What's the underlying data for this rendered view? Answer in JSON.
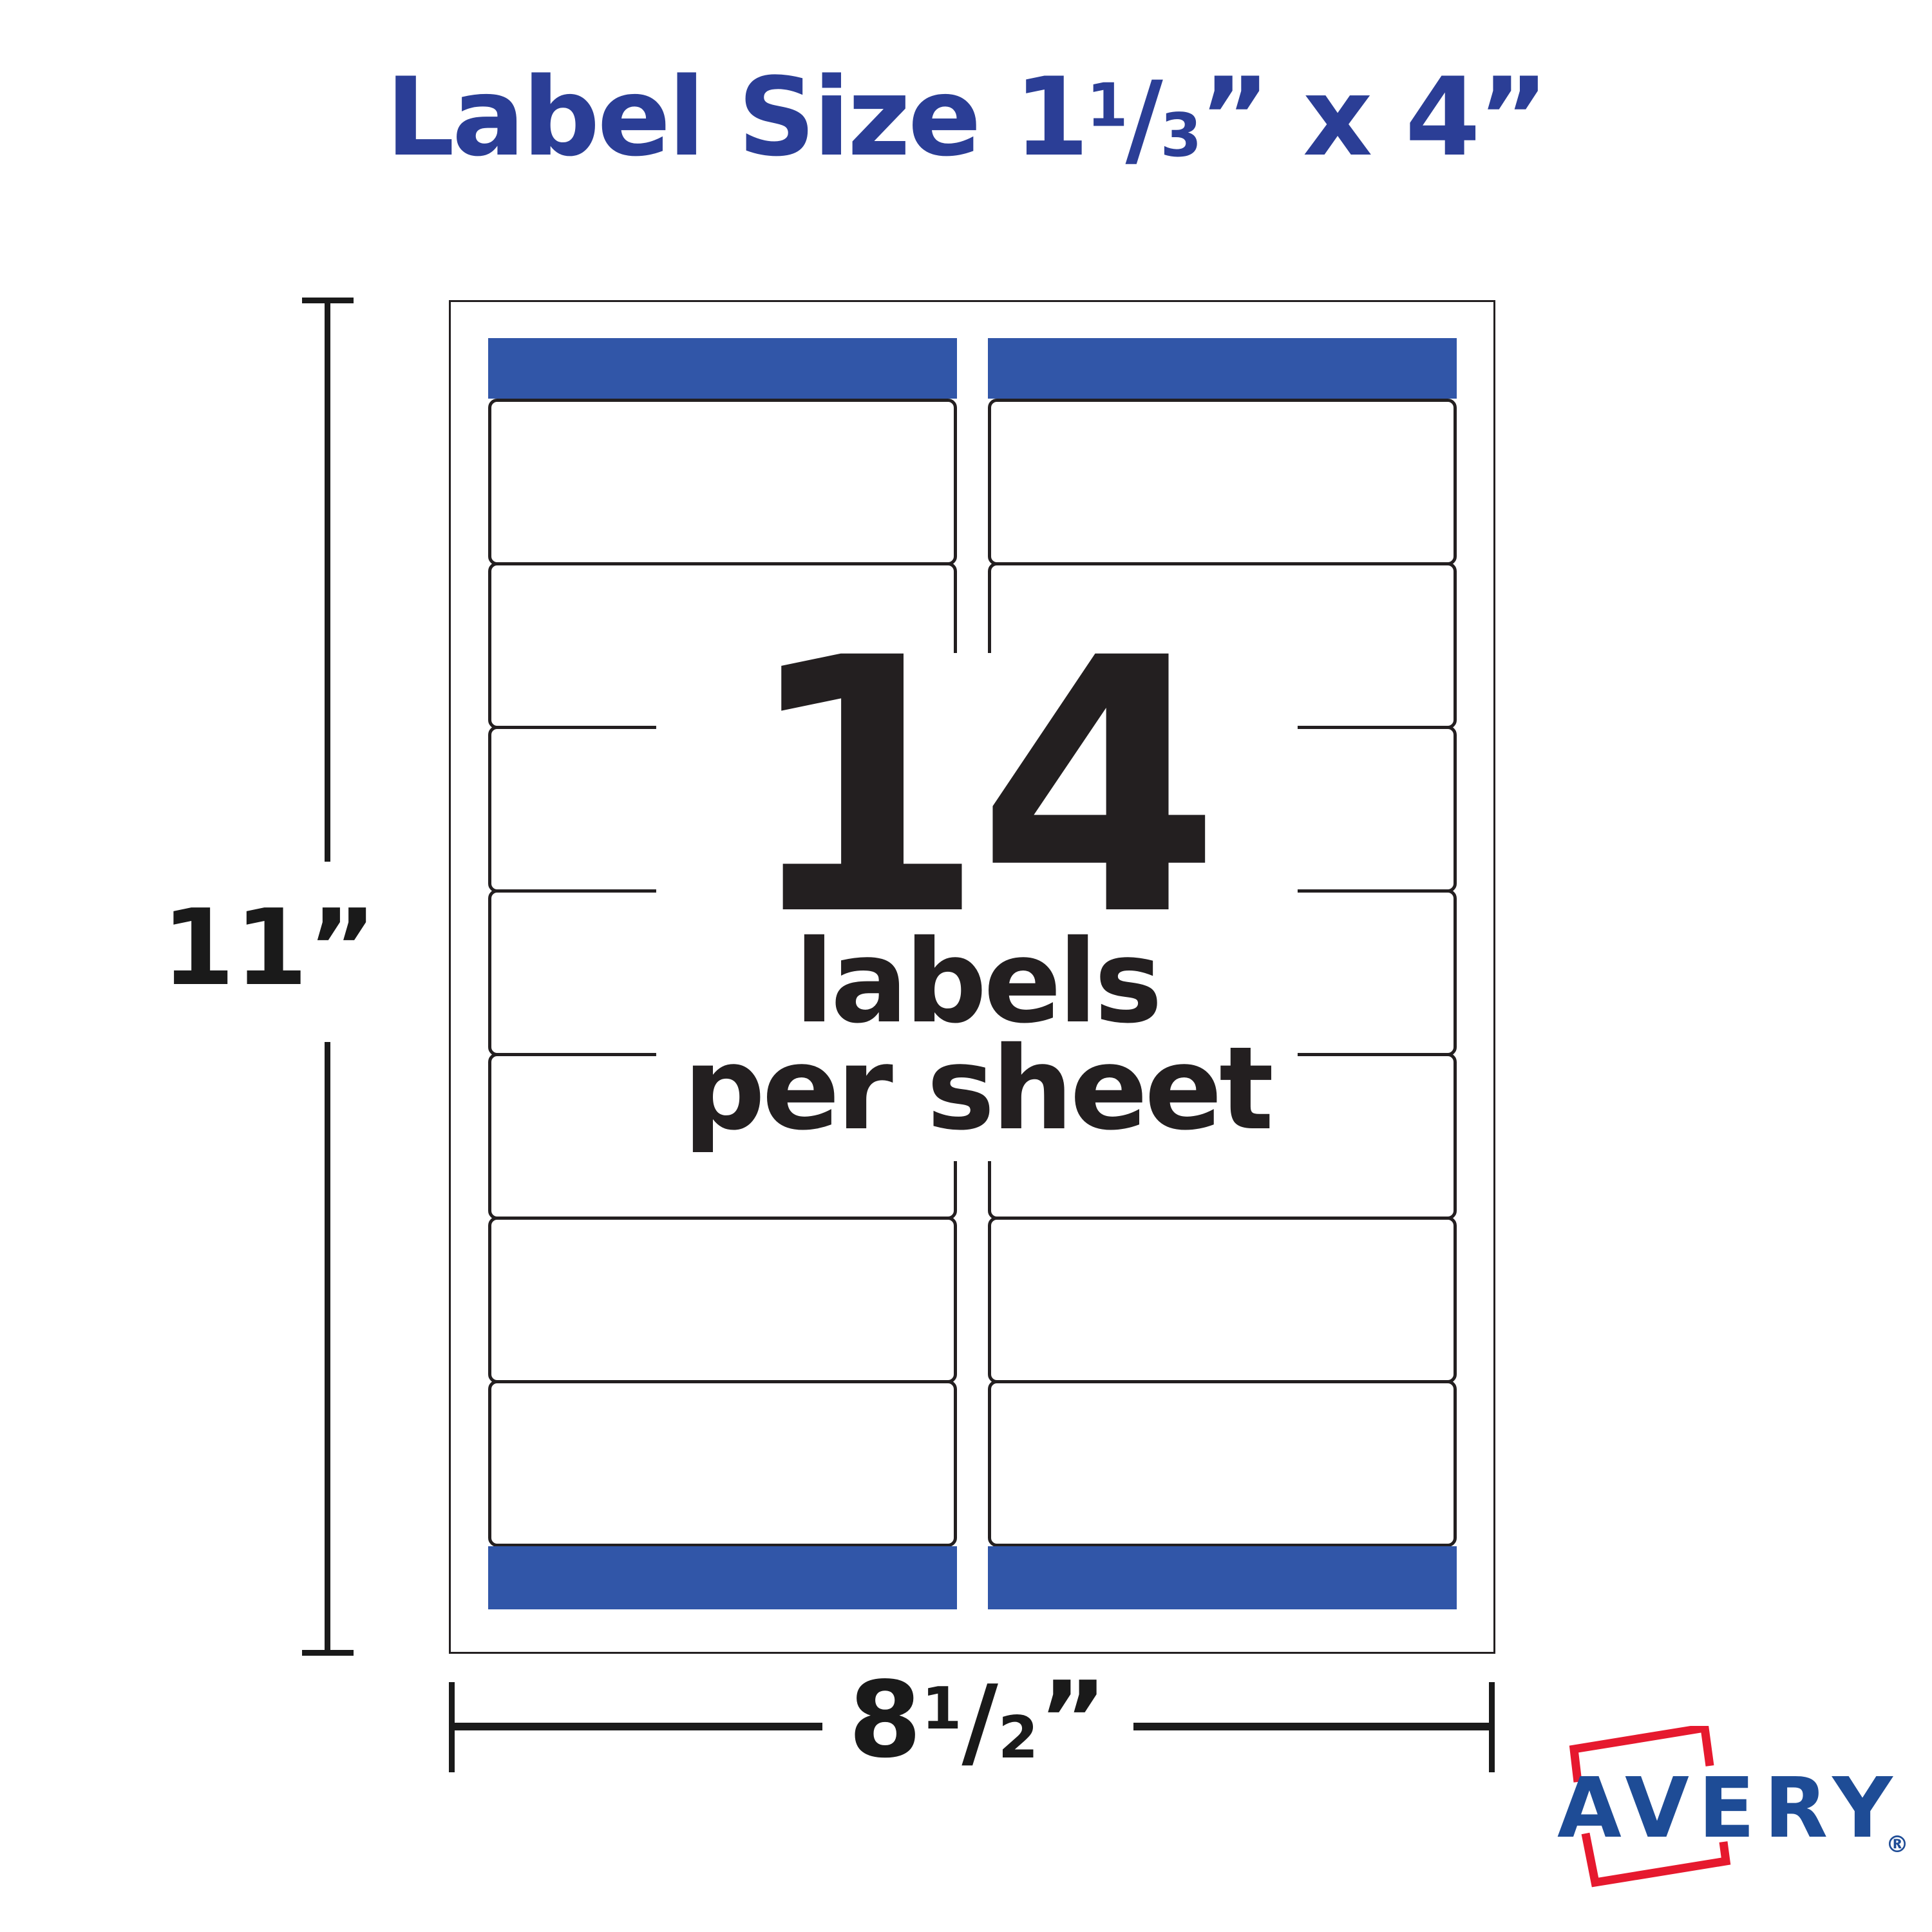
{
  "page": {
    "background": "#ffffff"
  },
  "title": {
    "lead": "Label Size 1",
    "fraction": {
      "numerator": "1",
      "slash": "/",
      "denominator": "3"
    },
    "inch_mark": "”",
    "middle": " x 4",
    "inch_mark_2": "”",
    "color": "#2B3E96"
  },
  "sheet": {
    "columns": 2,
    "rows_per_column": 7,
    "labels_total": 14,
    "band_color": "#3156A8",
    "border_color": "#231F20",
    "callout": {
      "count": "14",
      "line1": "labels",
      "line2": "per sheet",
      "text_color": "#231F20"
    }
  },
  "dimensions": {
    "height": {
      "value": "11",
      "inch_mark": "”"
    },
    "width": {
      "lead": "8",
      "fraction": {
        "numerator": "1",
        "slash": "/",
        "denominator": "2"
      },
      "inch_mark": "”"
    }
  },
  "brand": {
    "wordmark": "AVERY",
    "registered": "®",
    "blue": "#1E4C96",
    "red": "#E6192E"
  }
}
